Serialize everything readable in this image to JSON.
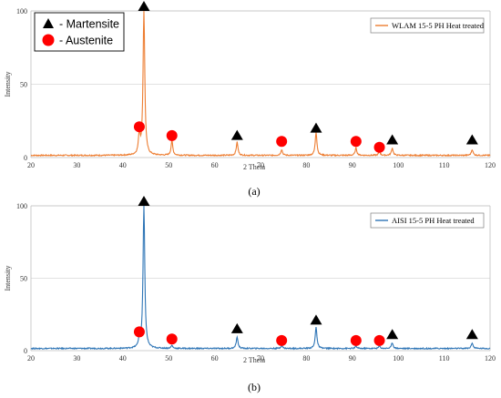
{
  "chart_data": [
    {
      "type": "line",
      "panel": "a",
      "caption": "(a)",
      "xlabel": "2 Theta",
      "ylabel": "Intensity",
      "xlim": [
        20,
        120
      ],
      "ylim": [
        0,
        100
      ],
      "xticks": [
        20,
        30,
        40,
        50,
        60,
        70,
        80,
        90,
        100,
        110,
        120
      ],
      "yticks": [
        0,
        50,
        100
      ],
      "grid": true,
      "legend_position": "top-right",
      "series": [
        {
          "name": "WLAM 15-5 PH Heat treated",
          "color": "#ED7D31",
          "baseline": 1.5,
          "peaks": [
            {
              "x": 43.6,
              "y": 14
            },
            {
              "x": 44.6,
              "y": 100
            },
            {
              "x": 50.7,
              "y": 10
            },
            {
              "x": 64.9,
              "y": 9
            },
            {
              "x": 74.6,
              "y": 4
            },
            {
              "x": 82.1,
              "y": 16
            },
            {
              "x": 90.8,
              "y": 5
            },
            {
              "x": 95.9,
              "y": 2.5
            },
            {
              "x": 98.7,
              "y": 5
            },
            {
              "x": 116.1,
              "y": 4
            }
          ]
        }
      ],
      "markers": {
        "martensite": [
          {
            "x": 44.6,
            "y": 100
          },
          {
            "x": 64.9,
            "y": 12
          },
          {
            "x": 82.1,
            "y": 17
          },
          {
            "x": 98.7,
            "y": 9
          },
          {
            "x": 116.1,
            "y": 9
          }
        ],
        "austenite": [
          {
            "x": 43.6,
            "y": 21
          },
          {
            "x": 50.7,
            "y": 15
          },
          {
            "x": 74.6,
            "y": 11
          },
          {
            "x": 90.8,
            "y": 11
          },
          {
            "x": 95.9,
            "y": 7
          }
        ]
      },
      "key": {
        "position": "top-left",
        "items": [
          {
            "symbol": "triangle",
            "label": "- Martensite"
          },
          {
            "symbol": "circle",
            "label": "- Austenite"
          }
        ]
      }
    },
    {
      "type": "line",
      "panel": "b",
      "caption": "(b)",
      "xlabel": "2 Theta",
      "ylabel": "Intensity",
      "xlim": [
        20,
        120
      ],
      "ylim": [
        0,
        100
      ],
      "xticks": [
        20,
        30,
        40,
        50,
        60,
        70,
        80,
        90,
        100,
        110,
        120
      ],
      "yticks": [
        0,
        50,
        100
      ],
      "grid": true,
      "legend_position": "top-right",
      "series": [
        {
          "name": "AISI 15-5 PH Heat treated",
          "color": "#2E75B6",
          "baseline": 1.5,
          "peaks": [
            {
              "x": 43.6,
              "y": 6
            },
            {
              "x": 44.6,
              "y": 100
            },
            {
              "x": 50.7,
              "y": 2
            },
            {
              "x": 64.9,
              "y": 8
            },
            {
              "x": 74.6,
              "y": 2
            },
            {
              "x": 82.1,
              "y": 15
            },
            {
              "x": 90.8,
              "y": 1.5
            },
            {
              "x": 95.9,
              "y": 1.5
            },
            {
              "x": 98.7,
              "y": 4
            },
            {
              "x": 116.1,
              "y": 4
            }
          ]
        }
      ],
      "markers": {
        "martensite": [
          {
            "x": 44.6,
            "y": 100
          },
          {
            "x": 64.9,
            "y": 12
          },
          {
            "x": 82.1,
            "y": 18
          },
          {
            "x": 98.7,
            "y": 8
          },
          {
            "x": 116.1,
            "y": 8
          }
        ],
        "austenite": [
          {
            "x": 43.6,
            "y": 13
          },
          {
            "x": 50.7,
            "y": 8
          },
          {
            "x": 74.6,
            "y": 7
          },
          {
            "x": 90.8,
            "y": 7
          },
          {
            "x": 95.9,
            "y": 7
          }
        ]
      }
    }
  ]
}
